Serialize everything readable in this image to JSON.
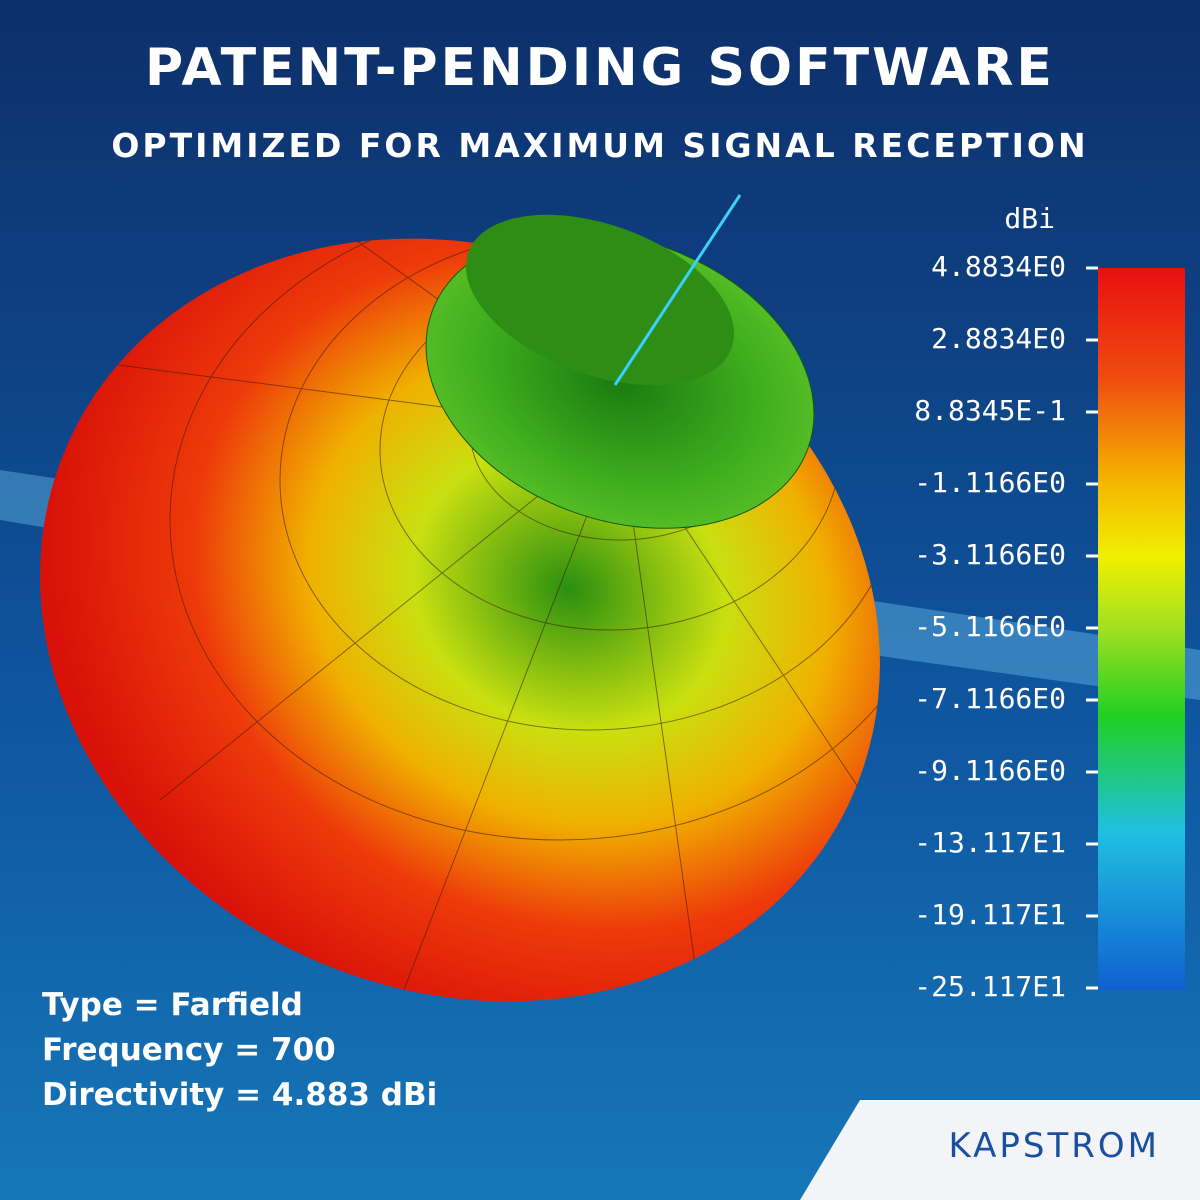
{
  "header": {
    "title": "PATENT-PENDING SOFTWARE",
    "subtitle": "OPTIMIZED FOR MAXIMUM SIGNAL RECEPTION"
  },
  "colorbar": {
    "unit": "dBi",
    "labels": [
      "4.8834E0",
      "2.8834E0",
      "8.8345E-1",
      "-1.1166E0",
      "-3.1166E0",
      "-5.1166E0",
      "-7.1166E0",
      "-9.1166E0",
      "-13.117E1",
      "-19.117E1",
      "-25.117E1"
    ]
  },
  "info": [
    "Type = Farfield",
    "Frequency = 700",
    "Directivity = 4.883 dBi"
  ],
  "brand": "KAPSTROM"
}
